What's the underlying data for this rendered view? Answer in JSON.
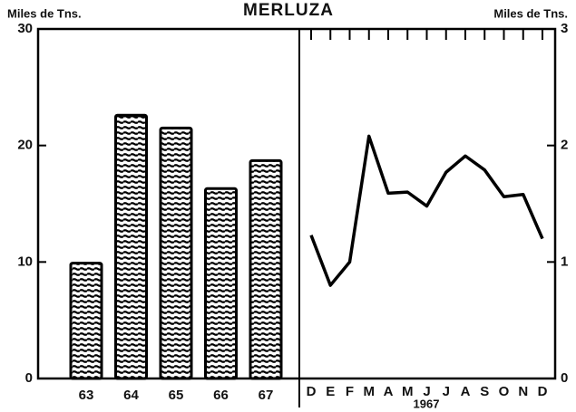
{
  "chart_data": [
    {
      "type": "bar",
      "title": "MERLUZA",
      "y_label": "Miles de Tns.",
      "categories": [
        "63",
        "64",
        "65",
        "66",
        "67"
      ],
      "values": [
        9.9,
        22.6,
        21.5,
        16.3,
        18.7
      ],
      "color": "#000000",
      "ylim": [
        0,
        30
      ],
      "yticks": [
        0,
        10,
        20,
        30
      ]
    },
    {
      "type": "line",
      "y_label": "Miles de Tns.",
      "x_label": "1967",
      "categories": [
        "D",
        "E",
        "F",
        "M",
        "A",
        "M",
        "J",
        "J",
        "A",
        "S",
        "O",
        "N",
        "D"
      ],
      "values": [
        1.23,
        0.8,
        1.0,
        2.08,
        1.59,
        1.6,
        1.48,
        1.77,
        1.91,
        1.79,
        1.56,
        1.58,
        1.2
      ],
      "color": "#000000",
      "ylim": [
        0,
        3
      ],
      "yticks": [
        0,
        1,
        2,
        3
      ]
    }
  ]
}
